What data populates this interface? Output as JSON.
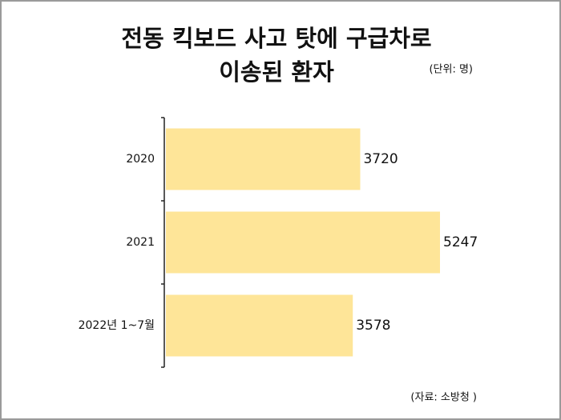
{
  "chart_data": {
    "type": "bar",
    "orientation": "horizontal",
    "title": [
      "전동 킥보드 사고 탓에 구급차로",
      "이송된 환자"
    ],
    "unit_note": "(단위: 명)",
    "source": "(자료: 소방청 )",
    "categories": [
      "2020",
      "2021",
      "2022년 1~7월"
    ],
    "values": [
      3720,
      5247,
      3578
    ],
    "color": "#fee598"
  }
}
